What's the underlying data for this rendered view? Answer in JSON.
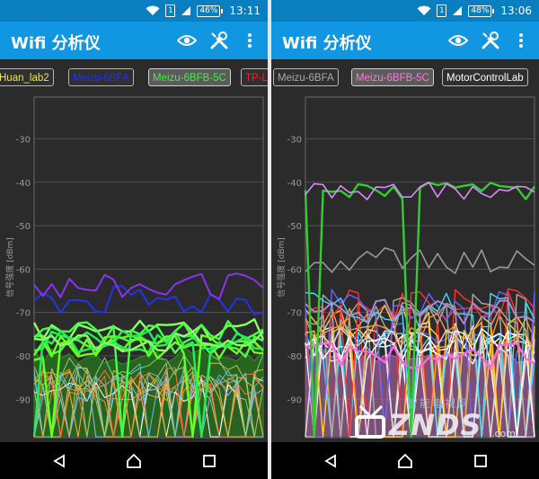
{
  "colors": {
    "status_bar": "#0a7fc0",
    "app_bar": "#1197e2",
    "background": "#2b2b2b",
    "grid": "#5a5a5a"
  },
  "screens": [
    {
      "status": {
        "battery": "46%",
        "time": "13:11",
        "sim": "1"
      },
      "app_title": "Wifi 分析仪",
      "toolbar_icons": [
        "eye-icon",
        "tools-icon",
        "overflow-menu-icon"
      ],
      "tabs": [
        {
          "label": "Huan_lab2",
          "color": "#e8e84a",
          "selected": false
        },
        {
          "label": "Meizu-6BFA",
          "color": "#2233ee",
          "selected": false
        },
        {
          "label": "Meizu-6BFB-5C",
          "color": "#44ee44",
          "selected": true
        },
        {
          "label": "TP-LI",
          "color": "#ff2222",
          "selected": false
        }
      ],
      "chart": {
        "ylabel": "信号强度 [dBm]",
        "ticks": [
          "-30",
          "-40",
          "-50",
          "-60",
          "-70",
          "-80",
          "-90"
        ]
      },
      "nav_icons": [
        "back-icon",
        "home-icon",
        "recents-icon"
      ]
    },
    {
      "status": {
        "battery": "48%",
        "time": "13:06",
        "sim": "1"
      },
      "app_title": "Wifi 分析仪",
      "toolbar_icons": [
        "eye-icon",
        "tools-icon",
        "overflow-menu-icon"
      ],
      "tabs": [
        {
          "label": "Meizu-6BFA",
          "color": "#aaaaaa",
          "selected": false
        },
        {
          "label": "Meizu-6BFB-5C",
          "color": "#ff77dd",
          "selected": true
        },
        {
          "label": "MotorControlLab",
          "color": "#ffffff",
          "selected": false
        }
      ],
      "chart": {
        "ylabel": "信号强度 [dBm]",
        "ticks": [
          "-30",
          "-40",
          "-50",
          "-60",
          "-70",
          "-80",
          "-90"
        ]
      },
      "nav_icons": [
        "back-icon",
        "home-icon",
        "recents-icon"
      ]
    }
  ],
  "watermark": {
    "cn": "智能电视网",
    "en": "ZNDS",
    "suffix": ".com"
  }
}
